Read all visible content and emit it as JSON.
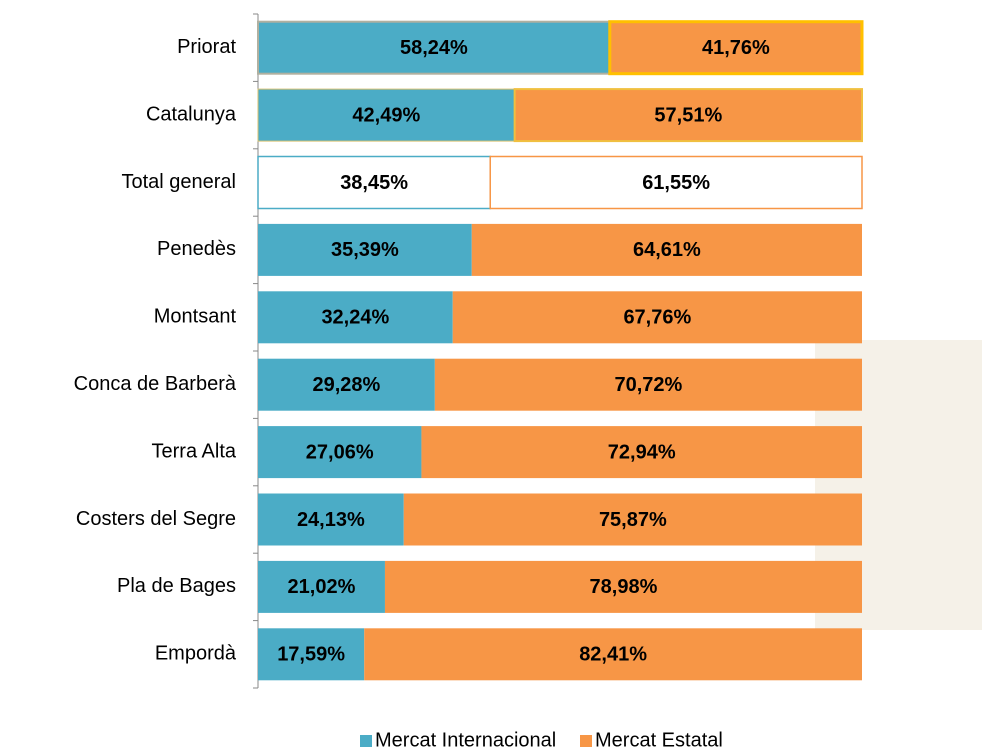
{
  "chart_data": {
    "type": "bar",
    "orientation": "horizontal",
    "stacked": true,
    "categories": [
      "Priorat",
      "Catalunya",
      "Total general",
      "Penedès",
      "Montsant",
      "Conca de Barberà",
      "Terra Alta",
      "Costers del Segre",
      "Pla de Bages",
      "Empordà"
    ],
    "series": [
      {
        "name": "Mercat Internacional",
        "color": "#4bacc6",
        "values": [
          58.24,
          42.49,
          38.45,
          35.39,
          32.24,
          29.28,
          27.06,
          24.13,
          21.02,
          17.59
        ],
        "value_labels": [
          "58,24%",
          "42,49%",
          "38,45%",
          "35,39%",
          "32,24%",
          "29,28%",
          "27,06%",
          "24,13%",
          "21,02%",
          "17,59%"
        ]
      },
      {
        "name": "Mercat Estatal",
        "color": "#f79646",
        "values": [
          41.76,
          57.51,
          61.55,
          64.61,
          67.76,
          70.72,
          72.94,
          75.87,
          78.98,
          82.41
        ],
        "value_labels": [
          "41,76%",
          "57,51%",
          "61,55%",
          "64,61%",
          "67,76%",
          "70,72%",
          "72,94%",
          "75,87%",
          "78,98%",
          "82,41%"
        ]
      }
    ],
    "xlim": [
      0,
      100
    ],
    "legend": "bottom"
  }
}
